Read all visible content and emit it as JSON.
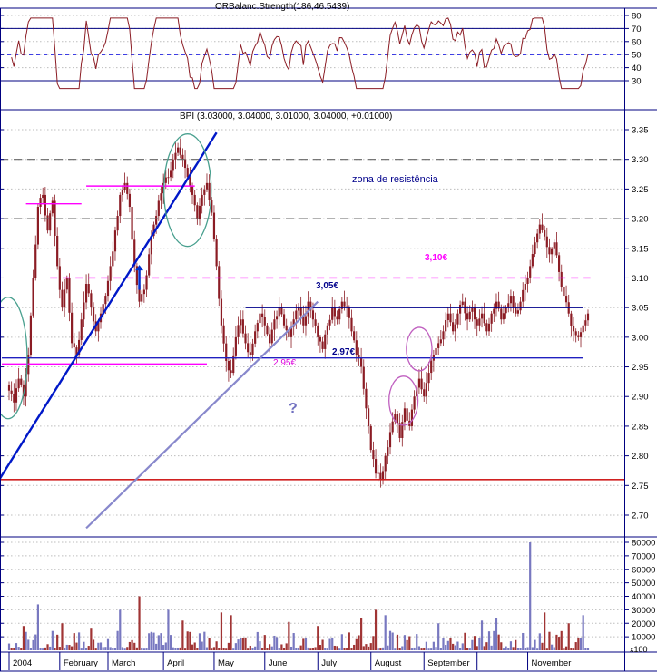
{
  "indicator_panel": {
    "title": "ORBalanc.Strength(186,46.5439)",
    "axis_labels": [
      "80",
      "70",
      "60",
      "50",
      "40",
      "30"
    ],
    "guide_lines": {
      "upper": 70,
      "middle": 50,
      "lower": 30
    }
  },
  "price_panel": {
    "title": "BPI (3.03000, 3.04000, 3.01000, 3.04000, +0.01000)",
    "axis_labels": [
      "3.35",
      "3.30",
      "3.25",
      "3.20",
      "3.15",
      "3.10",
      "3.05",
      "3.00",
      "2.95",
      "2.90",
      "2.85",
      "2.80",
      "2.75",
      "2.70"
    ],
    "annotations": {
      "resistance_zone": "zona de resistência",
      "level_310": "3,10€",
      "level_305": "3,05€",
      "level_297": "2,97€",
      "level_295": "2.95€",
      "question_mark": "?"
    }
  },
  "volume_panel": {
    "axis_labels": [
      "80000",
      "70000",
      "60000",
      "50000",
      "40000",
      "30000",
      "20000",
      "10000"
    ],
    "multiplier": "x100"
  },
  "chart_data": {
    "type": "candlestick",
    "symbol": "BPI",
    "last_quote": {
      "open": 3.03,
      "high": 3.04,
      "low": 3.01,
      "close": 3.04,
      "change": 0.01
    },
    "price_axis": {
      "min": 2.7,
      "max": 3.35,
      "step": 0.05
    },
    "indicator_axis": {
      "min": 30,
      "max": 80,
      "step": 10
    },
    "volume_axis": {
      "min": 10000,
      "max": 80000,
      "step": 10000,
      "multiplier": "x100"
    },
    "total_days": 241,
    "closes_every_2_days": [
      2.91,
      2.89,
      2.93,
      2.9,
      2.97,
      3.1,
      3.22,
      3.24,
      3.18,
      3.23,
      3.12,
      3.05,
      3.1,
      2.99,
      2.97,
      3.03,
      3.09,
      3.05,
      3.01,
      3.04,
      3.07,
      3.12,
      3.18,
      3.24,
      3.26,
      3.22,
      3.12,
      3.06,
      3.08,
      3.14,
      3.19,
      3.23,
      3.26,
      3.27,
      3.3,
      3.32,
      3.3,
      3.27,
      3.24,
      3.2,
      3.24,
      3.26,
      3.21,
      3.12,
      3.02,
      2.96,
      2.94,
      3.0,
      3.03,
      2.99,
      2.97,
      3.01,
      3.04,
      3.02,
      2.99,
      3.03,
      3.05,
      3.02,
      3.0,
      3.03,
      3.05,
      3.02,
      3.06,
      3.03,
      3.0,
      2.98,
      3.02,
      3.05,
      3.03,
      3.06,
      3.05,
      3.01,
      2.97,
      2.95,
      2.88,
      2.81,
      2.77,
      2.76,
      2.8,
      2.84,
      2.87,
      2.83,
      2.88,
      2.85,
      2.9,
      2.93,
      2.9,
      2.94,
      2.97,
      2.99,
      3.01,
      3.04,
      3.01,
      3.04,
      3.06,
      3.03,
      3.05,
      3.02,
      3.04,
      3.01,
      3.04,
      3.06,
      3.03,
      3.05,
      3.07,
      3.04,
      3.06,
      3.09,
      3.12,
      3.16,
      3.19,
      3.17,
      3.14,
      3.16,
      3.11,
      3.07,
      3.04,
      3.01,
      3.0,
      3.02,
      3.04
    ],
    "volume_spikes": {
      "6": 18000,
      "12": 34000,
      "22": 20000,
      "34": 16000,
      "46": 30000,
      "54": 40000,
      "66": 30000,
      "72": 22000,
      "88": 28000,
      "92": 26000,
      "116": 21000,
      "128": 18000,
      "146": 24000,
      "152": 30000,
      "156": 26000,
      "178": 20000,
      "196": 22000,
      "202": 24000,
      "216": 80000,
      "222": 28000,
      "232": 20000,
      "238": 26000
    },
    "months": [
      {
        "label": "2004",
        "day": 0
      },
      {
        "label": "February",
        "day": 21
      },
      {
        "label": "March",
        "day": 41
      },
      {
        "label": "April",
        "day": 64
      },
      {
        "label": "May",
        "day": 85
      },
      {
        "label": "June",
        "day": 106
      },
      {
        "label": "July",
        "day": 128
      },
      {
        "label": "August",
        "day": 150
      },
      {
        "label": "September",
        "day": 172
      },
      {
        "label": "",
        "day": 194
      },
      {
        "label": "November",
        "day": 215
      }
    ],
    "levels": [
      {
        "price": 3.3,
        "color": "#666666",
        "dash": "9,6",
        "from_day": -4,
        "to_day": 256,
        "width": 1.2
      },
      {
        "price": 3.2,
        "color": "#666666",
        "dash": "9,6",
        "from_day": -4,
        "to_day": 256,
        "width": 1.2
      },
      {
        "price": 3.255,
        "color": "#ff00ff",
        "dash": null,
        "from_day": 32,
        "to_day": 77,
        "width": 1.4
      },
      {
        "price": 3.225,
        "color": "#ff00ff",
        "dash": null,
        "from_day": 7,
        "to_day": 30,
        "width": 1.4
      },
      {
        "price": 3.1,
        "color": "#ff00ff",
        "dash": "8,6",
        "from_day": 17,
        "to_day": 241,
        "width": 1.3
      },
      {
        "price": 3.05,
        "color": "#00008b",
        "dash": null,
        "from_day": 98,
        "to_day": 238,
        "width": 1.4
      },
      {
        "price": 2.965,
        "color": "#2020c0",
        "dash": null,
        "from_day": -3,
        "to_day": 238,
        "width": 1.4
      },
      {
        "price": 2.955,
        "color": "#ff00ff",
        "dash": null,
        "from_day": -3,
        "to_day": 82,
        "width": 1.4
      },
      {
        "price": 2.76,
        "color": "#d02020",
        "dash": null,
        "from_day": -4,
        "to_day": 256,
        "width": 1.6
      }
    ],
    "trendlines": [
      {
        "from_day": -4,
        "from_price": 2.762,
        "to_day": 86,
        "to_price": 3.345,
        "color": "#0018c8",
        "width": 2.4
      },
      {
        "from_day": 32,
        "from_price": 2.678,
        "to_day": 128,
        "to_price": 3.06,
        "color": "#8888cc",
        "width": 2.2
      }
    ],
    "ellipses": [
      {
        "day": 74,
        "price": 3.248,
        "rx_days": 9.8,
        "r_price": 0.0948,
        "color": "#49a08f"
      },
      {
        "day": -0.4,
        "price": 2.965,
        "rx_days": 7.9,
        "r_price": 0.1025,
        "color": "#49a08f"
      },
      {
        "day": 170,
        "price": 2.98,
        "rx_days": 5.3,
        "r_price": 0.0367,
        "color": "#c060c0"
      },
      {
        "day": 163.5,
        "price": 2.893,
        "rx_days": 6.0,
        "r_price": 0.0413,
        "color": "#c060c0"
      }
    ],
    "arrow": {
      "day": 54,
      "tail_price": 3.08,
      "tip_price": 3.122,
      "color": "#0030d0"
    }
  }
}
